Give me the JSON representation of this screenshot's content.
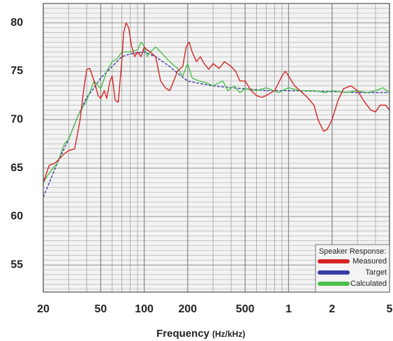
{
  "chart_data": {
    "type": "line",
    "x_label": "Frequency",
    "x_label_unit": "(Hz/kHz)",
    "xscale": "log",
    "xlim": [
      20,
      5000
    ],
    "xticks": [
      20,
      50,
      100,
      200,
      500,
      {
        "value": 1000,
        "label": "1"
      },
      {
        "value": 2000,
        "label": "2"
      },
      {
        "value": 5000,
        "label": "5"
      }
    ],
    "ylim": [
      52.2,
      82
    ],
    "yticks": [
      55,
      60,
      65,
      70,
      75,
      80
    ],
    "grid": true,
    "ygrid_step": 0.5,
    "legend_title": "Speaker Response:",
    "legend": "lower right",
    "series": [
      {
        "name": "Measured",
        "color": "#d42424",
        "x": [
          20,
          22,
          24,
          26,
          28,
          30,
          33,
          36,
          38,
          40,
          42,
          45,
          48,
          50,
          53,
          55,
          58,
          60,
          63,
          66,
          70,
          72,
          75,
          78,
          82,
          86,
          90,
          95,
          100,
          105,
          110,
          120,
          130,
          140,
          150,
          160,
          170,
          185,
          195,
          205,
          215,
          230,
          245,
          260,
          280,
          300,
          330,
          360,
          400,
          430,
          460,
          500,
          550,
          600,
          650,
          700,
          800,
          900,
          950,
          1000,
          1100,
          1200,
          1350,
          1500,
          1600,
          1750,
          1850,
          2000,
          2200,
          2400,
          2700,
          3000,
          3300,
          3700,
          4000,
          4300,
          4700,
          5000
        ],
        "values": [
          63.5,
          65.3,
          65.5,
          66,
          66.5,
          66.8,
          67,
          70,
          73,
          75.2,
          75.3,
          74,
          72.5,
          72.2,
          73,
          72.2,
          74,
          74.5,
          72,
          71.8,
          76,
          79,
          80,
          79.5,
          77.5,
          76.5,
          77,
          76.5,
          77.5,
          77.2,
          77,
          76.5,
          74,
          73.3,
          73,
          74,
          75,
          75.5,
          77.5,
          78,
          77,
          76,
          76.5,
          75.8,
          75.2,
          75.8,
          75.3,
          76,
          75.5,
          75,
          74,
          74,
          73,
          72.5,
          72.3,
          72.5,
          73,
          74.5,
          75,
          74.5,
          73.5,
          73,
          72.3,
          71.5,
          70,
          68.8,
          69,
          70,
          72,
          73.2,
          73.5,
          73,
          72,
          71,
          70.8,
          71.5,
          71.5,
          71
        ]
      },
      {
        "name": "Target",
        "color": "#3b3ba6",
        "dashed": true,
        "x": [
          20,
          22,
          25,
          30,
          35,
          40,
          45,
          50,
          60,
          70,
          80,
          100,
          120,
          150,
          180,
          200,
          250,
          300,
          400,
          500,
          700,
          1000,
          2000,
          3000,
          5000
        ],
        "values": [
          62,
          63.5,
          65.5,
          68,
          70.5,
          72.3,
          73.3,
          74.3,
          75.5,
          76.5,
          76.8,
          77,
          76.5,
          75.5,
          74.5,
          74,
          73.7,
          73.5,
          73.3,
          73.2,
          73,
          73,
          72.9,
          72.8,
          72.8
        ]
      },
      {
        "name": "Calculated",
        "color": "#4cbf4c",
        "x": [
          20,
          22,
          25,
          28,
          30,
          35,
          40,
          45,
          50,
          55,
          60,
          65,
          70,
          80,
          90,
          95,
          100,
          105,
          110,
          120,
          130,
          150,
          170,
          185,
          200,
          215,
          240,
          270,
          300,
          350,
          380,
          420,
          460,
          500,
          600,
          700,
          850,
          1000,
          1200,
          1500,
          1800,
          2000,
          2500,
          3000,
          3500,
          4000,
          4500,
          5000
        ],
        "values": [
          63.5,
          64.5,
          65.5,
          67.5,
          68,
          70.5,
          72,
          74,
          73.2,
          75,
          76,
          76.3,
          77,
          77,
          77.2,
          78,
          77.6,
          76.5,
          77,
          77.5,
          77,
          76,
          75.3,
          74.5,
          75.8,
          74.3,
          74,
          73.8,
          73.5,
          74,
          73,
          73.5,
          72.8,
          73.2,
          73,
          73.3,
          72.8,
          73.3,
          73,
          73,
          72.8,
          73,
          72.8,
          73,
          72.8,
          73,
          73.3,
          72.8
        ]
      }
    ]
  }
}
